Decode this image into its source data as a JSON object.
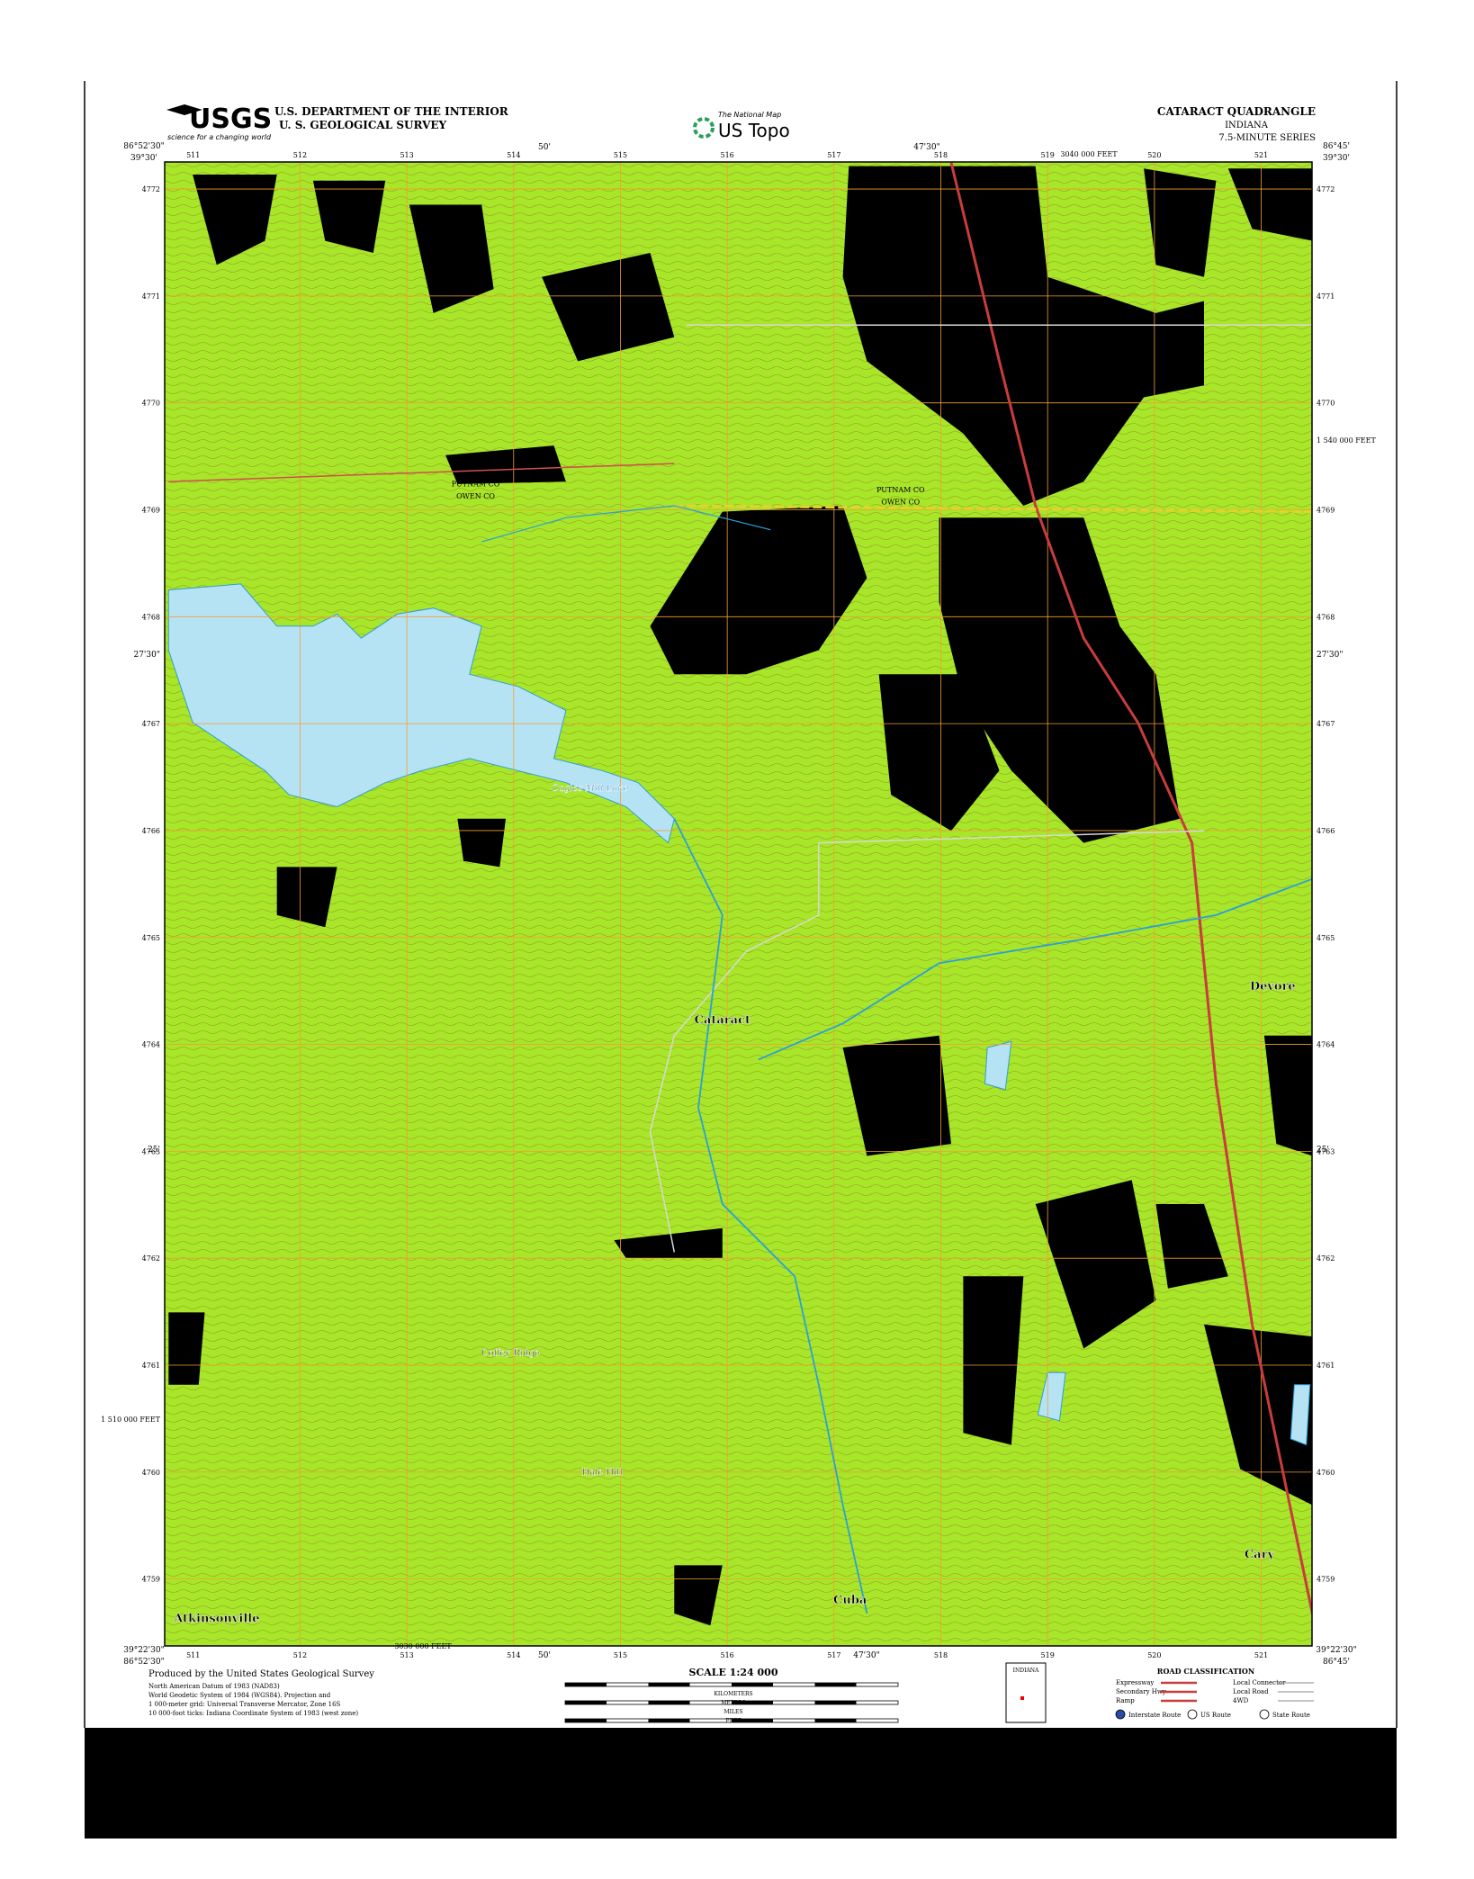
{
  "header": {
    "logo": "USGS",
    "logo_tagline": "science for a changing world",
    "department": "U.S. DEPARTMENT OF THE INTERIOR",
    "survey": "U. S. GEOLOGICAL SURVEY",
    "product_tagline": "The National Map",
    "product": "US Topo",
    "quadrangle": "CATARACT QUADRANGLE",
    "state": "INDIANA",
    "series": "7.5-MINUTE SERIES"
  },
  "map": {
    "corners": {
      "top_left_lon": "86°52'30\"",
      "top_left_lat": "39°30'",
      "top_right_lon": "86°45'",
      "top_right_lat": "39°30'",
      "bottom_left_lat": "39°22'30\"",
      "bottom_left_lon": "86°52'30\"",
      "bottom_right_lat": "39°22'30\"",
      "bottom_right_lon": "86°45'"
    },
    "edge_labels": {
      "top_50": "50'",
      "top_47_30": "47'30\"",
      "bottom_50": "50'",
      "bottom_47_30": "47'30\"",
      "left_27_30": "27'30\"",
      "right_27_30": "27'30\"",
      "left_25": "25'",
      "right_25": "25'",
      "top_feet": "3040 000 FEET",
      "bottom_feet": "3030 000 FEET",
      "right_feet": "1 540 000 FEET",
      "left_feet": "1 510 000 FEET"
    },
    "grid_x": [
      "511",
      "512",
      "513",
      "514",
      "515",
      "516",
      "517",
      "518",
      "519",
      "520",
      "521"
    ],
    "grid_y": [
      "4772",
      "4771",
      "4770",
      "4769",
      "4768",
      "4767",
      "4766",
      "4765",
      "4764",
      "4763",
      "4762",
      "4761",
      "4760",
      "4759"
    ],
    "places": [
      "Cataract",
      "Devore",
      "Cary",
      "Cuba",
      "Atkinsonville",
      "Cagles Mill Lake",
      "Hale Hill",
      "Coffey Ridge"
    ],
    "county_labels": [
      "PUTNAM CO",
      "OWEN CO",
      "PUTNAM CO",
      "OWEN CO"
    ]
  },
  "footer": {
    "credit": "Produced by the United States Geological Survey",
    "notes": [
      "North American Datum of 1983 (NAD83)",
      "World Geodetic System of 1984 (WGS84). Projection and",
      "1 000-meter grid: Universal Transverse Mercator, Zone 16S",
      "10 000-foot ticks: Indiana Coordinate System of 1983 (west zone)"
    ],
    "scale": "SCALE 1:24 000",
    "scale_units": [
      "KILOMETERS",
      "METERS",
      "MILES",
      "FEET"
    ],
    "inset_state": "INDIANA",
    "road_title": "ROAD CLASSIFICATION",
    "roads": [
      "Expressway",
      "Secondary Hwy",
      "Ramp",
      "Local Connector",
      "Local Road",
      "4WD"
    ],
    "shields": [
      "Interstate Route",
      "US Route",
      "State Route"
    ]
  }
}
